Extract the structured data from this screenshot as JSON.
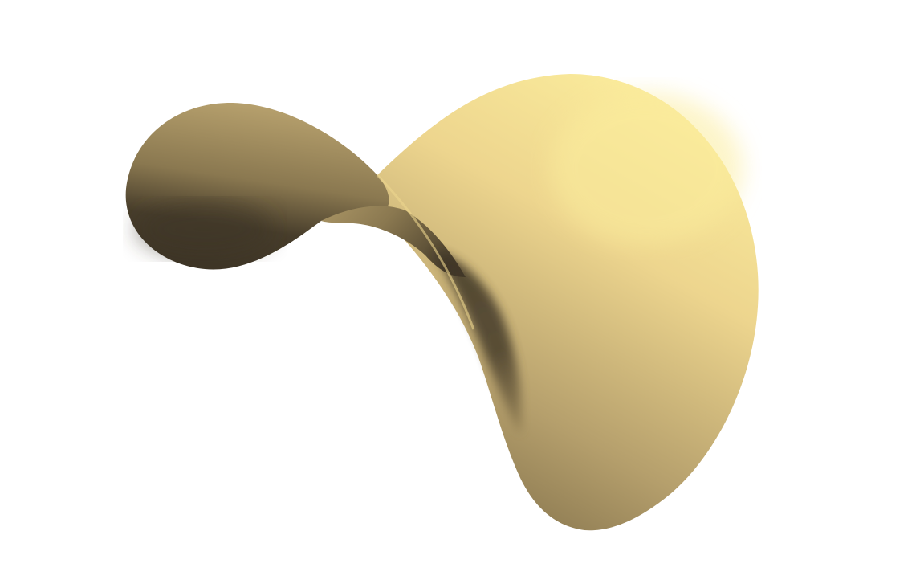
{
  "scene": {
    "background_color": "#ffffff",
    "object": "curved-surface",
    "colors": {
      "highlight": "#FBEC9C",
      "light": "#EDD58E",
      "mid": "#B59F6C",
      "shade": "#8A7850",
      "dark": "#473D2B",
      "deep": "#3E3526"
    }
  }
}
